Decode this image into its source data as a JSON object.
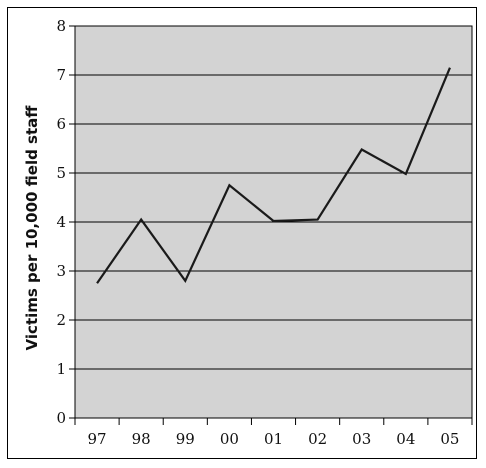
{
  "chart_data": {
    "type": "line",
    "title": "",
    "xlabel": "",
    "ylabel": "Victims per 10,000 field staff",
    "categories": [
      "97",
      "98",
      "99",
      "00",
      "01",
      "02",
      "03",
      "04",
      "05"
    ],
    "values": [
      2.75,
      4.05,
      2.8,
      4.75,
      4.02,
      4.05,
      5.48,
      4.98,
      7.15
    ],
    "ylim": [
      0,
      8
    ],
    "yticks": [
      "0",
      "1",
      "2",
      "3",
      "4",
      "5",
      "6",
      "7",
      "8"
    ],
    "grid": true,
    "legend": "none",
    "colors": {
      "plot_background": "#d3d3d3",
      "line": "#1a1a1a",
      "gridline": "#000000"
    }
  }
}
